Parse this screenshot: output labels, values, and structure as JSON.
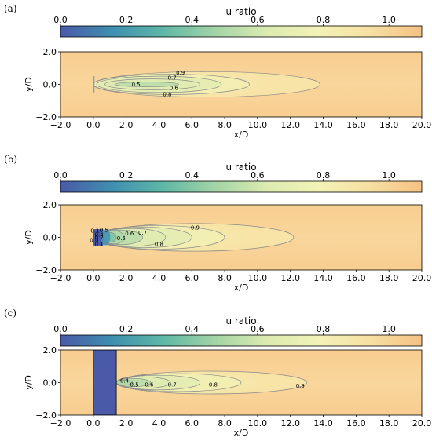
{
  "colorbar": {
    "title": "u ratio",
    "ticks": [
      0.0,
      0.2,
      0.4,
      0.6,
      0.8,
      1.0
    ],
    "tick_labels": [
      "0.0",
      "0.2",
      "0.4",
      "0.6",
      "0.8",
      "1.0"
    ],
    "range": [
      0.0,
      1.1
    ],
    "colormap": "RdYlBu_r-like (blue to green to yellow to orange)",
    "colors": [
      "#4a5aa8",
      "#3f8fb0",
      "#5fb8a6",
      "#a3d4a6",
      "#dcebb0",
      "#f3f2b7",
      "#f7dfa2",
      "#f4c283"
    ]
  },
  "chart_data": [
    {
      "type": "heatmap",
      "panel_label": "(a)",
      "title": "",
      "xlabel": "x/D",
      "ylabel": "y/D",
      "xlim": [
        -2.0,
        20.0
      ],
      "ylim": [
        -2.0,
        2.0
      ],
      "xticks": [
        "−2.0",
        "0.0",
        "2.0",
        "4.0",
        "6.0",
        "8.0",
        "10.0",
        "12.0",
        "14.0",
        "16.0",
        "18.0",
        "20.0"
      ],
      "yticks": [
        "−2.0",
        "0.0",
        "2.0"
      ],
      "obstacle": {
        "x0": 0.0,
        "x1": 0.05,
        "y0": -0.5,
        "y1": 0.5
      },
      "contours": [
        {
          "level": 0.5,
          "label": "0.5",
          "x0": 1.3,
          "x1": 5.2,
          "ry": 0.15
        },
        {
          "level": 0.6,
          "label": "0.6",
          "x0": 0.7,
          "x1": 6.5,
          "ry": 0.33
        },
        {
          "level": 0.7,
          "label": "0.7",
          "x0": 0.2,
          "x1": 7.8,
          "ry": 0.5
        },
        {
          "level": 0.8,
          "label": "0.8",
          "x0": 0.0,
          "x1": 9.5,
          "ry": 0.62
        },
        {
          "level": 0.9,
          "label": "0.9",
          "x0": 0.0,
          "x1": 13.8,
          "ry": 0.78
        }
      ],
      "contour_labels": [
        {
          "text": "0.5",
          "x": 2.6,
          "y": 0.0
        },
        {
          "text": "0.6",
          "x": 4.9,
          "y": -0.22
        },
        {
          "text": "0.7",
          "x": 4.8,
          "y": 0.42
        },
        {
          "text": "0.8",
          "x": 4.5,
          "y": -0.6
        },
        {
          "text": "0.9",
          "x": 5.3,
          "y": 0.72
        }
      ]
    },
    {
      "type": "heatmap",
      "panel_label": "(b)",
      "title": "",
      "xlabel": "x/D",
      "ylabel": "y/D",
      "xlim": [
        -2.0,
        20.0
      ],
      "ylim": [
        -2.0,
        2.0
      ],
      "xticks": [
        "−2.0",
        "0.0",
        "2.0",
        "4.0",
        "6.0",
        "8.0",
        "10.0",
        "12.0",
        "14.0",
        "16.0",
        "18.0",
        "20.0"
      ],
      "yticks": [
        "−2.0",
        "0.0",
        "2.0"
      ],
      "obstacle": {
        "x0": 0.0,
        "x1": 0.6,
        "y0": -0.5,
        "y1": 0.5
      },
      "contours": [
        {
          "level": 0.3,
          "label": "0.3",
          "x0": 0.6,
          "x1": 1.4,
          "ry": 0.3
        },
        {
          "level": 0.4,
          "label": "0.4",
          "x0": 0.6,
          "x1": 1.9,
          "ry": 0.4
        },
        {
          "level": 0.5,
          "label": "0.5",
          "x0": 0.4,
          "x1": 3.0,
          "ry": 0.45
        },
        {
          "level": 0.6,
          "label": "0.6",
          "x0": 0.3,
          "x1": 4.4,
          "ry": 0.55
        },
        {
          "level": 0.7,
          "label": "0.7",
          "x0": 0.2,
          "x1": 6.0,
          "ry": 0.63
        },
        {
          "level": 0.8,
          "label": "0.8",
          "x0": 0.0,
          "x1": 8.0,
          "ry": 0.72
        },
        {
          "level": 0.9,
          "label": "0.9",
          "x0": 0.0,
          "x1": 12.2,
          "ry": 0.85
        }
      ],
      "contour_labels": [
        {
          "text": "0.1",
          "x": 0.1,
          "y": 0.42
        },
        {
          "text": "0.5",
          "x": 0.65,
          "y": 0.46
        },
        {
          "text": "0.4",
          "x": 0.35,
          "y": 0.18
        },
        {
          "text": "0.2",
          "x": 0.35,
          "y": 0.0
        },
        {
          "text": "0.0",
          "x": 0.05,
          "y": -0.18
        },
        {
          "text": "0.1",
          "x": 0.35,
          "y": -0.4
        },
        {
          "text": "0.6",
          "x": 2.2,
          "y": 0.25
        },
        {
          "text": "0.7",
          "x": 3.0,
          "y": 0.3
        },
        {
          "text": "0.5",
          "x": 1.7,
          "y": -0.05
        },
        {
          "text": "0.8",
          "x": 4.0,
          "y": -0.42
        },
        {
          "text": "0.9",
          "x": 6.2,
          "y": 0.6
        }
      ]
    },
    {
      "type": "heatmap",
      "panel_label": "(c)",
      "title": "",
      "xlabel": "x/D",
      "ylabel": "y/D",
      "xlim": [
        -2.0,
        20.0
      ],
      "ylim": [
        -2.0,
        2.0
      ],
      "xticks": [
        "−2.0",
        "0.0",
        "2.0",
        "4.0",
        "6.0",
        "8.0",
        "10.0",
        "12.0",
        "14.0",
        "16.0",
        "18.0",
        "20.0"
      ],
      "yticks": [
        "−2.0",
        "0.0",
        "2.0"
      ],
      "obstacle": {
        "x0": 0.0,
        "x1": 1.4,
        "y0": -2.0,
        "y1": 2.0
      },
      "contours": [
        {
          "level": 0.4,
          "label": "0.4",
          "x0": 1.4,
          "x1": 2.4,
          "ry": 0.15
        },
        {
          "level": 0.5,
          "label": "0.5",
          "x0": 1.4,
          "x1": 3.5,
          "ry": 0.25
        },
        {
          "level": 0.6,
          "label": "0.6",
          "x0": 1.4,
          "x1": 4.7,
          "ry": 0.35
        },
        {
          "level": 0.7,
          "label": "0.7",
          "x0": 1.4,
          "x1": 6.5,
          "ry": 0.45
        },
        {
          "level": 0.8,
          "label": "0.8",
          "x0": 1.4,
          "x1": 9.0,
          "ry": 0.55
        },
        {
          "level": 0.9,
          "label": "0.9",
          "x0": 1.4,
          "x1": 13.0,
          "ry": 0.7
        }
      ],
      "contour_labels": [
        {
          "text": "0.4",
          "x": 1.9,
          "y": 0.12
        },
        {
          "text": "0.5",
          "x": 2.5,
          "y": -0.12
        },
        {
          "text": "0.6",
          "x": 3.4,
          "y": -0.12
        },
        {
          "text": "0.7",
          "x": 4.8,
          "y": -0.12
        },
        {
          "text": "0.8",
          "x": 7.3,
          "y": -0.12
        },
        {
          "text": "0.9",
          "x": 12.6,
          "y": -0.2
        }
      ]
    }
  ]
}
